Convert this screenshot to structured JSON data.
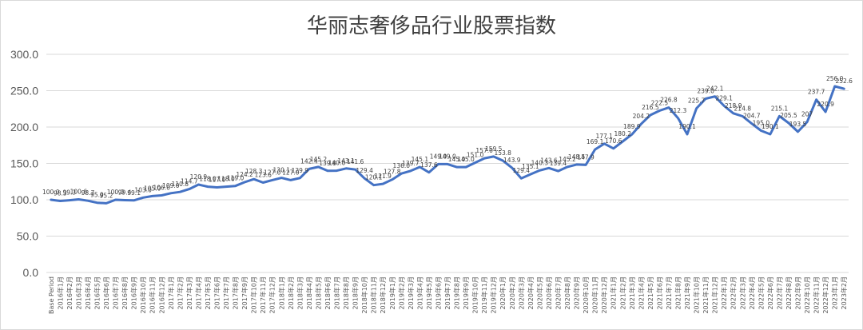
{
  "chart_data": {
    "type": "line",
    "title": "华丽志奢侈品行业股票指数",
    "xlabel": "",
    "ylabel": "",
    "ylim": [
      0,
      300
    ],
    "yticks": [
      "0.0",
      "50.0",
      "100.0",
      "150.0",
      "200.0",
      "250.0",
      "300.0"
    ],
    "grid": true,
    "legend": "none",
    "line_color": "#4472c4",
    "categories": [
      "Base Period",
      "2016年1月",
      "2016年2月",
      "2016年3月",
      "2016年4月",
      "2016年5月",
      "2016年6月",
      "2016年7月",
      "2016年8月",
      "2016年9月",
      "2016年10月",
      "2016年11月",
      "2016年12月",
      "2017年1月",
      "2017年2月",
      "2017年3月",
      "2017年4月",
      "2017年5月",
      "2017年6月",
      "2017年7月",
      "2017年8月",
      "2017年9月",
      "2017年10月",
      "2017年11月",
      "2017年12月",
      "2018年1月",
      "2018年2月",
      "2018年3月",
      "2018年4月",
      "2018年5月",
      "2018年6月",
      "2018年7月",
      "2018年8月",
      "2018年9月",
      "2018年10月",
      "2018年11月",
      "2018年12月",
      "2019年1月",
      "2019年2月",
      "2019年3月",
      "2019年4月",
      "2019年5月",
      "2019年6月",
      "2019年7月",
      "2019年8月",
      "2019年9月",
      "2019年10月",
      "2019年11月",
      "2019年12月",
      "2020年1月",
      "2020年2月",
      "2020年3月",
      "2020年4月",
      "2020年5月",
      "2020年6月",
      "2020年7月",
      "2020年8月",
      "2020年9月",
      "2020年10月",
      "2020年11月",
      "2020年12月",
      "2021年1月",
      "2021年2月",
      "2021年3月",
      "2021年4月",
      "2021年5月",
      "2021年6月",
      "2021年7月",
      "2021年8月",
      "2021年9月",
      "2021年10月",
      "2021年11月",
      "2021年12月",
      "2022年1月",
      "2022年2月",
      "2022年3月",
      "2022年4月",
      "2022年5月",
      "2022年6月",
      "2022年7月",
      "2022年8月",
      "2022年9月",
      "2022年10月",
      "2022年11月",
      "2022年12月",
      "2023年1月",
      "2023年2月"
    ],
    "values": [
      100.0,
      98.3,
      99.3,
      100.6,
      98.7,
      95.9,
      95.2,
      100.0,
      99.4,
      99.1,
      103.0,
      105.0,
      106.0,
      109.0,
      110.8,
      114.7,
      120.9,
      118.0,
      117.0,
      118.0,
      119.0,
      124.2,
      128.3,
      123.6,
      127.0,
      130.1,
      127.0,
      129.9,
      142.4,
      145.2,
      139.8,
      140.0,
      143.1,
      141.6,
      129.4,
      120.1,
      121.9,
      127.8,
      136.0,
      139.7,
      145.1,
      137.6,
      149.0,
      149.0,
      145.0,
      145.0,
      151.0,
      157.0,
      159.5,
      153.8,
      143.9,
      129.4,
      135.1,
      140.3,
      143.6,
      139.4,
      145.2,
      148.5,
      147.9,
      169.1,
      177.1,
      170.6,
      180.2,
      189.9,
      204.2,
      216.5,
      222.5,
      226.8,
      212.3,
      190.1,
      225.7,
      239.0,
      242.1,
      229.1,
      218.9,
      214.8,
      204.7,
      195.0,
      190.1,
      215.1,
      205.5,
      193.5,
      207.0,
      237.7,
      220.9,
      256.0,
      252.6
    ],
    "data_labels": [
      "100.0",
      "98.3",
      "99.3",
      "100.6",
      "98.7",
      "95.9",
      "95.2",
      "100.0",
      "99.4",
      "99.1",
      "103.0",
      "105.0",
      "106.0",
      "109.0",
      "110.8",
      "114.7",
      "120.9",
      "118.0",
      "117.0",
      "118.0",
      "119.0",
      "124.2",
      "128.3",
      "123.6",
      "127.0",
      "130.1",
      "127.0",
      "129.9",
      "142.4",
      "145.2",
      "139.8",
      "140.0",
      "143.1",
      "141.6",
      "129.4",
      "120.1",
      "121.9",
      "127.8",
      "136.0",
      "139.7",
      "145.1",
      "137.6",
      "149.0",
      "149.0",
      "145.0",
      "145.0",
      "151.0",
      "157.0",
      "159.5",
      "153.8",
      "143.9",
      "129.4",
      "135.1",
      "140.3",
      "143.6",
      "139.4",
      "145.2",
      "148.5",
      "147.9",
      "169.1",
      "177.1",
      "170.6",
      "180.2",
      "189.9",
      "204.2",
      "216.5",
      "222.5",
      "226.8",
      "212.3",
      "190.1",
      "225.7",
      "239.0",
      "242.1",
      "229.1",
      "218.9",
      "214.8",
      "204.7",
      "195.0",
      "190.1",
      "215.1",
      "205.5",
      "193.5",
      "207",
      "237.7",
      "220.9",
      "256.0",
      "252.6"
    ]
  }
}
